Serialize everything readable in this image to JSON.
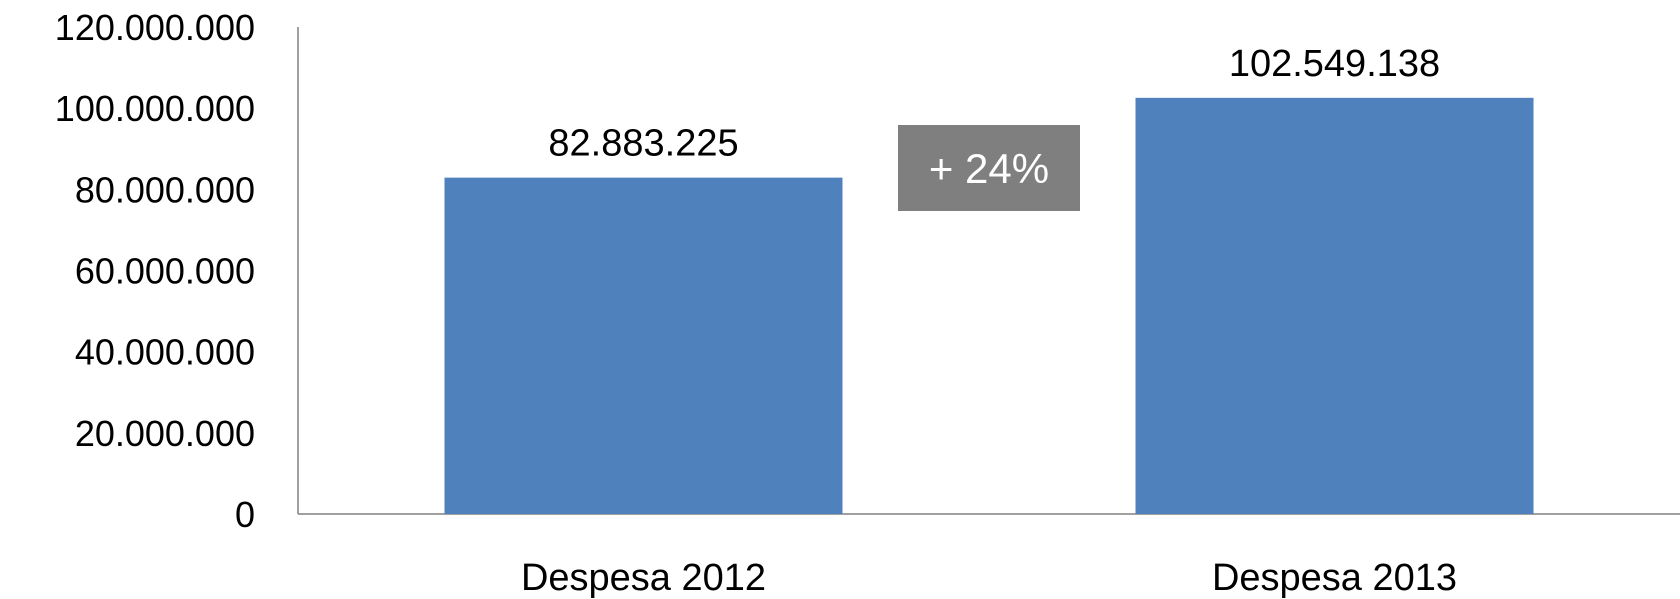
{
  "chart_data": {
    "type": "bar",
    "categories": [
      "Despesa 2012",
      "Despesa 2013"
    ],
    "values": [
      82883225,
      102549138
    ],
    "data_labels": [
      "82.883.225",
      "102.549.138"
    ],
    "y_ticks": [
      0,
      20000000,
      40000000,
      60000000,
      80000000,
      100000000,
      120000000
    ],
    "y_tick_labels": [
      "0",
      "20.000.000",
      "40.000.000",
      "60.000.000",
      "80.000.000",
      "100.000.000",
      "120.000.000"
    ],
    "ylim": [
      0,
      120000000
    ],
    "grid": false,
    "legend": "none",
    "annotation": {
      "text": "+ 24%"
    },
    "colors": {
      "bar": "#4f81bd",
      "annotation_bg": "#7f7f7f",
      "axis": "#808080"
    }
  }
}
